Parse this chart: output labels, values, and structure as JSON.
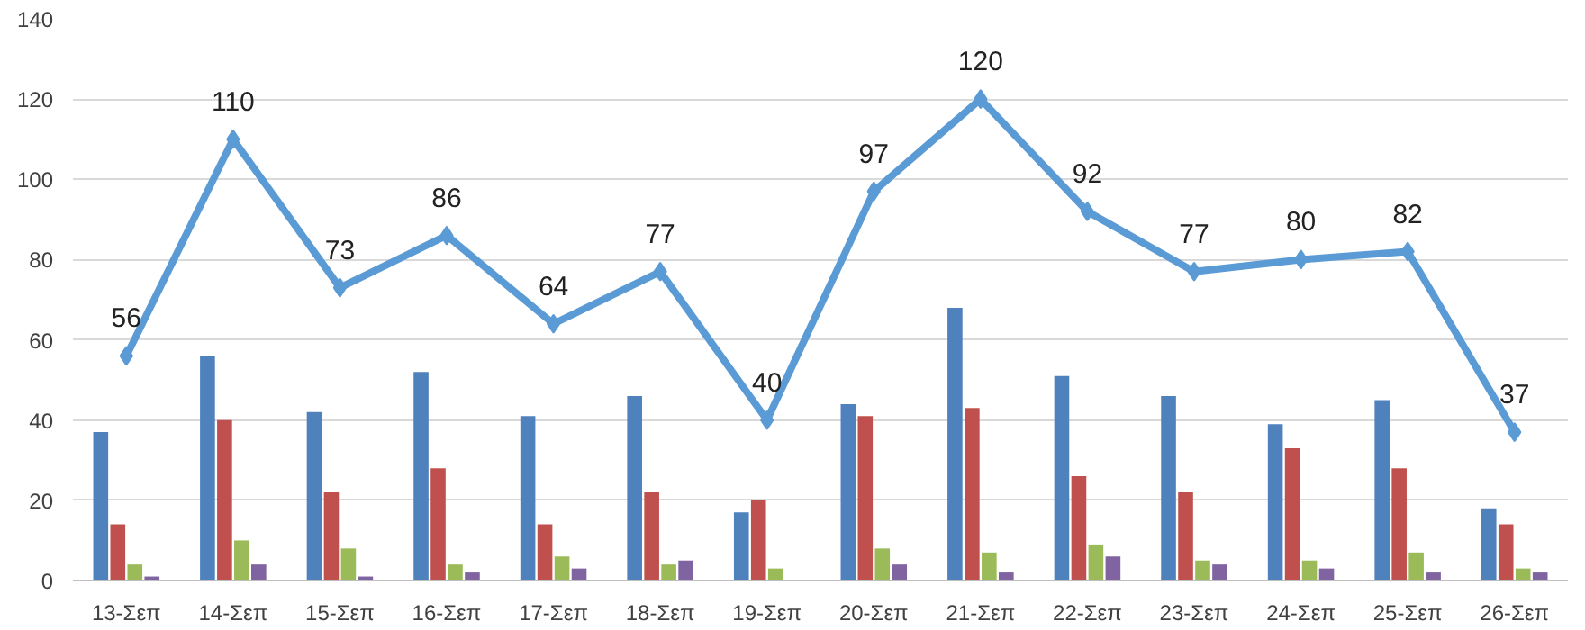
{
  "chart_data": {
    "type": "bar",
    "categories": [
      "13-Σεπ",
      "14-Σεπ",
      "15-Σεπ",
      "16-Σεπ",
      "17-Σεπ",
      "18-Σεπ",
      "19-Σεπ",
      "20-Σεπ",
      "21-Σεπ",
      "22-Σεπ",
      "23-Σεπ",
      "24-Σεπ",
      "25-Σεπ",
      "26-Σεπ"
    ],
    "ylim": [
      0,
      140
    ],
    "yticks": [
      0,
      20,
      40,
      60,
      80,
      100,
      120,
      140
    ],
    "grid": "y",
    "series": [
      {
        "color": "#4f81bd",
        "values": [
          37,
          56,
          42,
          52,
          41,
          46,
          17,
          44,
          68,
          51,
          46,
          39,
          45,
          18
        ]
      },
      {
        "color": "#c0504d",
        "values": [
          14,
          40,
          22,
          28,
          14,
          22,
          20,
          41,
          43,
          26,
          22,
          33,
          28,
          14
        ]
      },
      {
        "color": "#9bbb59",
        "values": [
          4,
          10,
          8,
          4,
          6,
          4,
          3,
          8,
          7,
          9,
          5,
          5,
          7,
          3
        ]
      },
      {
        "color": "#8064a2",
        "values": [
          1,
          4,
          1,
          2,
          3,
          5,
          0,
          4,
          2,
          6,
          4,
          3,
          2,
          2
        ]
      },
      {
        "type": "line",
        "color": "#5b9bd5",
        "marker": "diamond",
        "values": [
          56,
          110,
          73,
          86,
          64,
          77,
          40,
          97,
          120,
          92,
          77,
          80,
          82,
          37
        ],
        "value_labels": [
          "56",
          "110",
          "73",
          "86",
          "64",
          "77",
          "40",
          "97",
          "120",
          "92",
          "77",
          "80",
          "82",
          "37"
        ]
      }
    ]
  }
}
